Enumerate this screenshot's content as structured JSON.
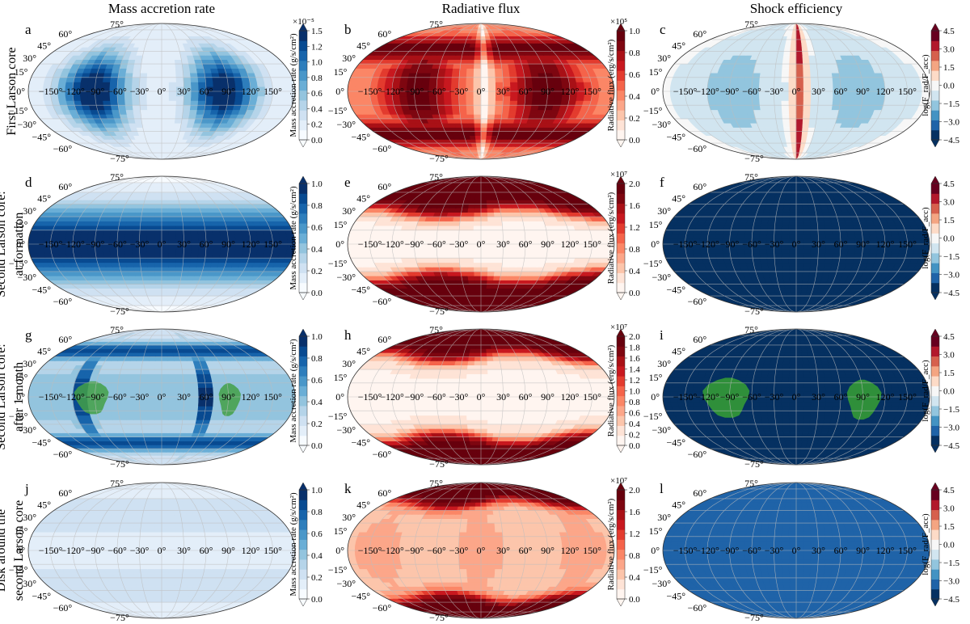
{
  "colors": {
    "blues": [
      "#f7fbff",
      "#e3eef9",
      "#cfe1f2",
      "#b5d4e9",
      "#93c4de",
      "#6aaed6",
      "#4a97c9",
      "#2e7ebc",
      "#1764ab",
      "#084a91",
      "#08306b"
    ],
    "reds": [
      "#fff5f0",
      "#fee3d6",
      "#fcc5ab",
      "#fca689",
      "#fb8666",
      "#f5634a",
      "#e33b2e",
      "#c8181f",
      "#a91016",
      "#7e0610",
      "#67000d"
    ],
    "rdbu": [
      "#053061",
      "#1f63a8",
      "#4393c3",
      "#92c5de",
      "#d1e5f0",
      "#f7f7f7",
      "#fddbc7",
      "#f4a582",
      "#d6604d",
      "#b2182b",
      "#67001f"
    ],
    "green": "#2f8f3a",
    "grid": "#bdbdbd"
  },
  "column_titles": [
    "Mass accretion rate",
    "Radiative flux",
    "Shock efficiency"
  ],
  "row_labels": [
    [
      "First Larson core"
    ],
    [
      "Second Larson core:",
      "at formation"
    ],
    [
      "Second Larson core:",
      "after 1 month"
    ],
    [
      "Disk around the",
      "second Larson core"
    ]
  ],
  "lon_tick_labels": [
    "−150°",
    "−120°",
    "−90°",
    "−60°",
    "−30°",
    "0°",
    "30°",
    "60°",
    "90°",
    "120°",
    "150°"
  ],
  "lat_tick_labels": [
    "75°",
    "60°",
    "45°",
    "30°",
    "15°",
    "0°",
    "−15°",
    "−30°",
    "−45°",
    "−60°",
    "−75°"
  ],
  "chart_data": {
    "type": "heatmap",
    "projection": "mollweide",
    "columns": [
      {
        "title": "Mass accretion rate",
        "colormap": "blues",
        "colorbar_label": "Mass accretion rate (g/s/cm²)"
      },
      {
        "title": "Radiative flux",
        "colormap": "reds",
        "colorbar_label": "Radiative flux (erg/s/cm²)"
      },
      {
        "title": "Shock efficiency",
        "colormap": "rdbu",
        "colorbar_label": "log(F_rad/F_acc)"
      }
    ],
    "panels": [
      {
        "letter": "a",
        "row": 0,
        "col": 0,
        "cmap": "blues",
        "pattern": "blobs",
        "params": {
          "amp": 1.0,
          "base": 0.05
        },
        "colorbar": {
          "ticks": [
            "0.0",
            "0.2",
            "0.4",
            "0.6",
            "0.8",
            "1.0",
            "1.2",
            "1.5"
          ],
          "exponent": "×10⁻⁵",
          "label": "Mass accretion rate (g/s/cm²)"
        }
      },
      {
        "letter": "b",
        "row": 0,
        "col": 1,
        "cmap": "reds",
        "pattern": "bands",
        "params": {
          "amp": 0.9,
          "base": 0.4
        },
        "colorbar": {
          "ticks": [
            "0.0",
            "0.2",
            "0.4",
            "0.6",
            "0.8",
            "1.0"
          ],
          "exponent": "×10⁵",
          "label": "Radiative flux (erg/s/cm²)"
        }
      },
      {
        "letter": "c",
        "row": 0,
        "col": 2,
        "cmap": "rdbu",
        "pattern": "shockA",
        "params": {},
        "colorbar": {
          "ticks": [
            "−4.5",
            "−3.0",
            "−1.5",
            "0.0",
            "1.5",
            "3.0",
            "4.5"
          ],
          "exponent": "",
          "label": "log(F_rad/F_acc)"
        }
      },
      {
        "letter": "d",
        "row": 1,
        "col": 0,
        "cmap": "blues",
        "pattern": "equator",
        "params": {
          "amp": 1.0,
          "width": 30,
          "edge": 0.2
        },
        "colorbar": {
          "ticks": [
            "0.0",
            "0.2",
            "0.4",
            "0.6",
            "0.8",
            "1.0"
          ],
          "exponent": "",
          "label": "Mass accretion rate (g/s/cm²)"
        }
      },
      {
        "letter": "e",
        "row": 1,
        "col": 1,
        "cmap": "reds",
        "pattern": "poles",
        "params": {
          "lat0": 34,
          "base": 0.03
        },
        "colorbar": {
          "ticks": [
            "0.0",
            "0.4",
            "0.8",
            "1.2",
            "1.6",
            "2.0"
          ],
          "exponent": "×10⁷",
          "label": "Radiative flux (erg/s/cm²)"
        }
      },
      {
        "letter": "f",
        "row": 1,
        "col": 2,
        "cmap": "rdbu",
        "pattern": "uniform",
        "params": {
          "v": 0.02
        },
        "colorbar": {
          "ticks": [
            "−4.5",
            "−3.0",
            "−1.5",
            "0.0",
            "1.5",
            "3.0",
            "4.5"
          ],
          "exponent": "",
          "label": "log(F_rad/F_acc)"
        }
      },
      {
        "letter": "g",
        "row": 2,
        "col": 0,
        "cmap": "blues",
        "pattern": "eye",
        "params": {},
        "colorbar": {
          "ticks": [
            "0.0",
            "0.2",
            "0.4",
            "0.6",
            "0.8",
            "1.0"
          ],
          "exponent": "",
          "label": "Mass accretion rate (g/s/cm²)"
        }
      },
      {
        "letter": "h",
        "row": 2,
        "col": 1,
        "cmap": "reds",
        "pattern": "poles",
        "params": {
          "lat0": 44,
          "base": 0.04
        },
        "colorbar": {
          "ticks": [
            "0.0",
            "0.2",
            "0.4",
            "0.6",
            "0.8",
            "1.0",
            "1.2",
            "1.4",
            "1.6",
            "1.8",
            "2.0"
          ],
          "exponent": "×10⁷",
          "label": "Radiative flux (erg/s/cm²)"
        }
      },
      {
        "letter": "i",
        "row": 2,
        "col": 2,
        "cmap": "rdbu",
        "pattern": "uniformGreen",
        "params": {
          "v": 0.03
        },
        "colorbar": {
          "ticks": [
            "−4.5",
            "−3.0",
            "−1.5",
            "0.0",
            "1.5",
            "3.0",
            "4.5"
          ],
          "exponent": "",
          "label": "log(F_rad/F_acc)"
        }
      },
      {
        "letter": "j",
        "row": 3,
        "col": 0,
        "cmap": "blues",
        "pattern": "faint",
        "params": {},
        "colorbar": {
          "ticks": [
            "0.0",
            "0.2",
            "0.4",
            "0.6",
            "0.8",
            "1.0"
          ],
          "exponent": "",
          "label": "Mass accretion rate (g/s/cm²)"
        }
      },
      {
        "letter": "k",
        "row": 3,
        "col": 1,
        "cmap": "reds",
        "pattern": "polesWarm",
        "params": {
          "lat0": 52
        },
        "colorbar": {
          "ticks": [
            "0.0",
            "0.4",
            "0.8",
            "1.2",
            "1.6",
            "2.0"
          ],
          "exponent": "×10⁷",
          "label": "Radiative flux (erg/s/cm²)"
        }
      },
      {
        "letter": "l",
        "row": 3,
        "col": 2,
        "cmap": "rdbu",
        "pattern": "shockL",
        "params": {},
        "colorbar": {
          "ticks": [
            "−4.5",
            "−3.0",
            "−1.5",
            "0.0",
            "1.5",
            "3.0",
            "4.5"
          ],
          "exponent": "",
          "label": "log(F_rad/F_acc)"
        }
      }
    ]
  }
}
